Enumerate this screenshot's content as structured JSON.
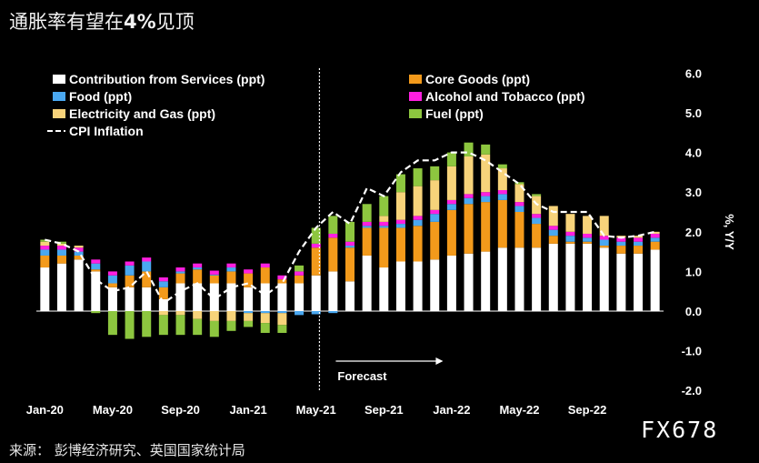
{
  "title_prefix": "通胀率有望在",
  "title_bold": "4%",
  "title_suffix": "见顶",
  "source": "来源： 彭博经济研究、英国国家统计局",
  "watermark": "FX678",
  "forecast_label": "Forecast",
  "chart_data": {
    "type": "stacked-bar+line",
    "ylabel": "%, Y/Y",
    "ylim": [
      -2.0,
      6.0
    ],
    "yticks": [
      "-2.0",
      "-1.0",
      "0.0",
      "1.0",
      "2.0",
      "3.0",
      "4.0",
      "5.0",
      "6.0"
    ],
    "x_tick_labels": [
      {
        "index": 0,
        "label": "Jan-20"
      },
      {
        "index": 4,
        "label": "May-20"
      },
      {
        "index": 8,
        "label": "Sep-20"
      },
      {
        "index": 12,
        "label": "Jan-21"
      },
      {
        "index": 16,
        "label": "May-21"
      },
      {
        "index": 20,
        "label": "Sep-21"
      },
      {
        "index": 24,
        "label": "Jan-22"
      },
      {
        "index": 28,
        "label": "May-22"
      },
      {
        "index": 32,
        "label": "Sep-22"
      }
    ],
    "forecast_start_index": 17,
    "colors": {
      "services": "#ffffff",
      "food": "#4aa8f0",
      "elec": "#f7d37a",
      "core": "#f39a1b",
      "alcohol": "#ff1fe0",
      "fuel": "#8dc63f",
      "cpi": "#ffffff"
    },
    "legend": [
      {
        "key": "services",
        "label": "Contribution from Services (ppt)"
      },
      {
        "key": "core",
        "label": "Core Goods (ppt)"
      },
      {
        "key": "food",
        "label": "Food (ppt)"
      },
      {
        "key": "alcohol",
        "label": "Alcohol and Tobacco (ppt)"
      },
      {
        "key": "elec",
        "label": "Electricity and Gas (ppt)"
      },
      {
        "key": "fuel",
        "label": "Fuel (ppt)"
      },
      {
        "key": "cpi",
        "label": "CPI Inflation"
      }
    ],
    "series": [
      {
        "key": "services",
        "name": "Contribution from Services (ppt)",
        "values": [
          1.1,
          1.2,
          1.3,
          1.0,
          0.6,
          0.6,
          0.6,
          0.3,
          0.7,
          0.7,
          0.7,
          0.7,
          0.6,
          0.7,
          0.7,
          0.7,
          0.9,
          1.0,
          0.75,
          1.4,
          1.1,
          1.25,
          1.25,
          1.3,
          1.4,
          1.45,
          1.5,
          1.6,
          1.6,
          1.6,
          1.7,
          1.7,
          1.7,
          1.6,
          1.45,
          1.45,
          1.55
        ]
      },
      {
        "key": "core",
        "name": "Core Goods (ppt)",
        "values": [
          0.3,
          0.2,
          0.1,
          0.05,
          0.1,
          0.3,
          0.4,
          0.3,
          0.25,
          0.35,
          0.2,
          0.3,
          0.35,
          0.4,
          0.1,
          0.2,
          0.7,
          0.85,
          0.85,
          0.7,
          1.0,
          0.85,
          0.9,
          0.95,
          1.15,
          1.25,
          1.25,
          1.2,
          0.9,
          0.6,
          0.2,
          0.05,
          0.05,
          0.05,
          0.2,
          0.2,
          0.2
        ]
      },
      {
        "key": "food",
        "name": "Food (ppt)",
        "values": [
          0.15,
          0.15,
          0.1,
          0.15,
          0.2,
          0.25,
          0.25,
          0.15,
          0.05,
          0.05,
          0.02,
          0.1,
          -0.05,
          -0.05,
          -0.05,
          -0.1,
          -0.08,
          -0.05,
          0.05,
          0.05,
          0.05,
          0.1,
          0.15,
          0.2,
          0.15,
          0.15,
          0.15,
          0.15,
          0.15,
          0.15,
          0.15,
          0.15,
          0.1,
          0.15,
          0.1,
          0.1,
          0.1
        ]
      },
      {
        "key": "alcohol",
        "name": "Alcohol and Tobacco (ppt)",
        "values": [
          0.1,
          0.1,
          0.1,
          0.1,
          0.1,
          0.1,
          0.1,
          0.1,
          0.1,
          0.1,
          0.1,
          0.1,
          0.1,
          0.1,
          0.1,
          0.1,
          0.1,
          0.1,
          0.1,
          0.1,
          0.1,
          0.1,
          0.1,
          0.1,
          0.1,
          0.1,
          0.1,
          0.1,
          0.1,
          0.1,
          0.1,
          0.1,
          0.1,
          0.1,
          0.1,
          0.1,
          0.1
        ]
      },
      {
        "key": "elec",
        "name": "Electricity and Gas (ppt)",
        "values": [
          0.1,
          0.05,
          0.05,
          0.0,
          0.0,
          0.0,
          0.0,
          -0.1,
          -0.1,
          -0.2,
          -0.25,
          -0.25,
          -0.2,
          -0.25,
          -0.3,
          0.0,
          0.0,
          0.0,
          0.0,
          0.0,
          0.15,
          0.7,
          0.75,
          0.75,
          0.85,
          0.95,
          0.95,
          0.55,
          0.45,
          0.45,
          0.5,
          0.45,
          0.45,
          0.5,
          0.05,
          0.05,
          0.05
        ]
      },
      {
        "key": "fuel",
        "name": "Fuel (ppt)",
        "values": [
          0.05,
          0.05,
          0.0,
          -0.05,
          -0.6,
          -0.7,
          -0.65,
          -0.5,
          -0.5,
          -0.4,
          -0.4,
          -0.25,
          -0.15,
          -0.25,
          -0.2,
          0.15,
          0.4,
          0.45,
          0.5,
          0.45,
          0.5,
          0.45,
          0.45,
          0.35,
          0.35,
          0.35,
          0.25,
          0.1,
          0.05,
          0.05,
          0.0,
          0.0,
          0.0,
          0.0,
          0.0,
          0.0,
          0.0
        ]
      }
    ],
    "cpi": [
      1.8,
      1.7,
      1.5,
      0.8,
      0.5,
      0.6,
      1.0,
      0.2,
      0.5,
      0.7,
      0.3,
      0.6,
      0.7,
      0.4,
      0.7,
      1.5,
      2.1,
      2.5,
      2.2,
      3.1,
      2.9,
      3.5,
      3.8,
      3.8,
      4.0,
      4.0,
      3.8,
      3.5,
      3.2,
      2.7,
      2.5,
      2.5,
      2.5,
      1.9,
      1.85,
      1.9,
      2.0
    ]
  }
}
